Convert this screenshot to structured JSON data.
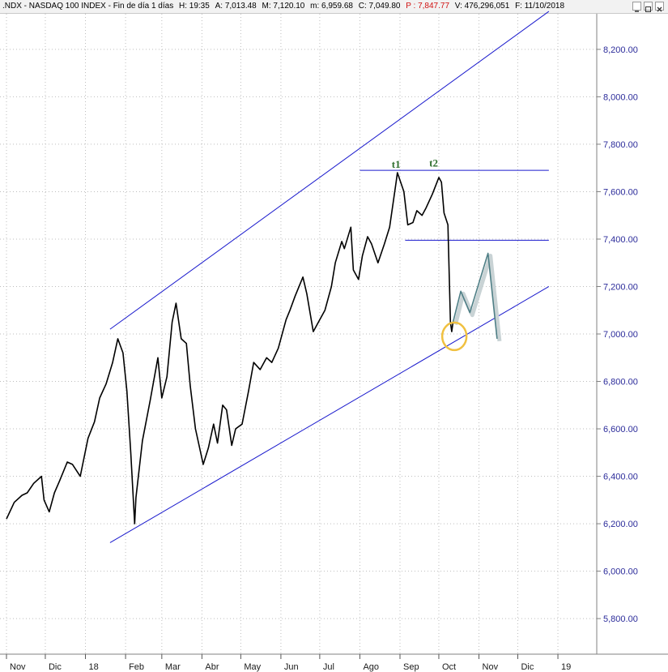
{
  "header": {
    "symbol": ".NDX - NASDAQ 100 INDEX - Fin de día 1 días",
    "h_label": "H:",
    "h_value": "19:35",
    "a_label": "A:",
    "a_value": "7,013.48",
    "m_label": "M:",
    "m_value": "7,120.10",
    "min_label": "m:",
    "min_value": "6,959.68",
    "c_label": "C:",
    "c_value": "7,049.80",
    "p_label": "P :",
    "p_value": "7,847.77",
    "v_label": "V:",
    "v_value": "476,296,051",
    "f_label": "F:",
    "f_value": "11/10/2018"
  },
  "colors": {
    "price": "#000000",
    "channel": "#1a1acd",
    "projection": "#4f7f86",
    "circle": "#f0c040",
    "y_labels": "#2b2b9a",
    "annotation": "#2e6f2e"
  },
  "chart_data": {
    "type": "line",
    "title": ".NDX - NASDAQ 100 INDEX - Fin de día 1 días",
    "ylim": [
      5650,
      8350
    ],
    "y_ticks": [
      {
        "value": 8200,
        "label": "8,200.00"
      },
      {
        "value": 8000,
        "label": "8,000.00"
      },
      {
        "value": 7800,
        "label": "7,800.00"
      },
      {
        "value": 7600,
        "label": "7,600.00"
      },
      {
        "value": 7400,
        "label": "7,400.00"
      },
      {
        "value": 7200,
        "label": "7,200.00"
      },
      {
        "value": 7000,
        "label": "7,000.00"
      },
      {
        "value": 6800,
        "label": "6,800.00"
      },
      {
        "value": 6600,
        "label": "6,600.00"
      },
      {
        "value": 6400,
        "label": "6,400.00"
      },
      {
        "value": 6200,
        "label": "6,200.00"
      },
      {
        "value": 6000,
        "label": "6,000.00"
      },
      {
        "value": 5800,
        "label": "5,800.00"
      }
    ],
    "x_range": [
      "2017-11-01",
      "2019-01-31"
    ],
    "x_ticks": [
      {
        "date": "2017-11-01",
        "label": "Nov"
      },
      {
        "date": "2017-12-01",
        "label": "Dic"
      },
      {
        "date": "2018-01-01",
        "label": "18"
      },
      {
        "date": "2018-02-01",
        "label": "Feb"
      },
      {
        "date": "2018-03-01",
        "label": "Mar"
      },
      {
        "date": "2018-04-01",
        "label": "Abr"
      },
      {
        "date": "2018-05-01",
        "label": "May"
      },
      {
        "date": "2018-06-01",
        "label": "Jun"
      },
      {
        "date": "2018-07-01",
        "label": "Jul"
      },
      {
        "date": "2018-08-01",
        "label": "Ago"
      },
      {
        "date": "2018-09-01",
        "label": "Sep"
      },
      {
        "date": "2018-10-01",
        "label": "Oct"
      },
      {
        "date": "2018-11-01",
        "label": "Nov"
      },
      {
        "date": "2018-12-01",
        "label": "Dic"
      },
      {
        "date": "2019-01-01",
        "label": "19"
      }
    ],
    "series": [
      {
        "points": [
          [
            "2017-11-01",
            6220
          ],
          [
            "2017-11-07",
            6290
          ],
          [
            "2017-11-13",
            6320
          ],
          [
            "2017-11-17",
            6330
          ],
          [
            "2017-11-22",
            6370
          ],
          [
            "2017-11-28",
            6400
          ],
          [
            "2017-11-30",
            6300
          ],
          [
            "2017-12-04",
            6250
          ],
          [
            "2017-12-08",
            6330
          ],
          [
            "2017-12-12",
            6380
          ],
          [
            "2017-12-18",
            6460
          ],
          [
            "2017-12-22",
            6450
          ],
          [
            "2017-12-28",
            6400
          ],
          [
            "2018-01-03",
            6560
          ],
          [
            "2018-01-08",
            6630
          ],
          [
            "2018-01-12",
            6730
          ],
          [
            "2018-01-17",
            6790
          ],
          [
            "2018-01-22",
            6880
          ],
          [
            "2018-01-26",
            6980
          ],
          [
            "2018-01-30",
            6920
          ],
          [
            "2018-02-02",
            6760
          ],
          [
            "2018-02-05",
            6500
          ],
          [
            "2018-02-08",
            6200
          ],
          [
            "2018-02-09",
            6310
          ],
          [
            "2018-02-14",
            6550
          ],
          [
            "2018-02-20",
            6720
          ],
          [
            "2018-02-26",
            6900
          ],
          [
            "2018-03-01",
            6730
          ],
          [
            "2018-03-05",
            6820
          ],
          [
            "2018-03-09",
            7050
          ],
          [
            "2018-03-12",
            7130
          ],
          [
            "2018-03-16",
            6980
          ],
          [
            "2018-03-20",
            6960
          ],
          [
            "2018-03-23",
            6780
          ],
          [
            "2018-03-27",
            6600
          ],
          [
            "2018-04-02",
            6450
          ],
          [
            "2018-04-06",
            6520
          ],
          [
            "2018-04-10",
            6620
          ],
          [
            "2018-04-13",
            6540
          ],
          [
            "2018-04-17",
            6700
          ],
          [
            "2018-04-20",
            6680
          ],
          [
            "2018-04-24",
            6530
          ],
          [
            "2018-04-27",
            6600
          ],
          [
            "2018-05-02",
            6620
          ],
          [
            "2018-05-07",
            6760
          ],
          [
            "2018-05-11",
            6880
          ],
          [
            "2018-05-16",
            6850
          ],
          [
            "2018-05-21",
            6900
          ],
          [
            "2018-05-25",
            6880
          ],
          [
            "2018-05-30",
            6940
          ],
          [
            "2018-06-05",
            7060
          ],
          [
            "2018-06-08",
            7100
          ],
          [
            "2018-06-12",
            7160
          ],
          [
            "2018-06-18",
            7240
          ],
          [
            "2018-06-21",
            7170
          ],
          [
            "2018-06-26",
            7010
          ],
          [
            "2018-06-29",
            7040
          ],
          [
            "2018-07-05",
            7100
          ],
          [
            "2018-07-10",
            7200
          ],
          [
            "2018-07-13",
            7300
          ],
          [
            "2018-07-18",
            7390
          ],
          [
            "2018-07-20",
            7360
          ],
          [
            "2018-07-25",
            7450
          ],
          [
            "2018-07-27",
            7270
          ],
          [
            "2018-07-31",
            7230
          ],
          [
            "2018-08-03",
            7330
          ],
          [
            "2018-08-07",
            7410
          ],
          [
            "2018-08-10",
            7380
          ],
          [
            "2018-08-15",
            7300
          ],
          [
            "2018-08-20",
            7380
          ],
          [
            "2018-08-24",
            7450
          ],
          [
            "2018-08-29",
            7640
          ],
          [
            "2018-08-30",
            7680
          ],
          [
            "2018-09-04",
            7600
          ],
          [
            "2018-09-07",
            7460
          ],
          [
            "2018-09-11",
            7470
          ],
          [
            "2018-09-14",
            7520
          ],
          [
            "2018-09-18",
            7500
          ],
          [
            "2018-09-21",
            7530
          ],
          [
            "2018-09-26",
            7590
          ],
          [
            "2018-10-01",
            7660
          ],
          [
            "2018-10-03",
            7640
          ],
          [
            "2018-10-05",
            7510
          ],
          [
            "2018-10-08",
            7460
          ],
          [
            "2018-10-10",
            7050
          ],
          [
            "2018-10-11",
            7010
          ],
          [
            "2018-10-12",
            7050
          ]
        ]
      }
    ],
    "channel_lines": [
      {
        "start": [
          "2018-01-20",
          6120
        ],
        "end": [
          "2018-12-25",
          7200
        ]
      },
      {
        "start": [
          "2018-01-20",
          7020
        ],
        "end": [
          "2018-12-25",
          8360
        ]
      }
    ],
    "horizontal_levels": [
      {
        "value": 7690,
        "start": "2018-08-01",
        "end": "2018-12-25"
      },
      {
        "value": 7395,
        "start": "2018-09-05",
        "end": "2018-12-25"
      }
    ],
    "projection": [
      [
        "2018-10-12",
        7050
      ],
      [
        "2018-10-18",
        7180
      ],
      [
        "2018-10-25",
        7090
      ],
      [
        "2018-11-08",
        7340
      ],
      [
        "2018-11-15",
        6980
      ]
    ],
    "circle": {
      "center": [
        "2018-10-13",
        6990
      ]
    },
    "annotations": [
      {
        "text": "t1",
        "date": "2018-08-29",
        "value": 7700
      },
      {
        "text": "t2",
        "date": "2018-09-27",
        "value": 7705
      }
    ]
  }
}
